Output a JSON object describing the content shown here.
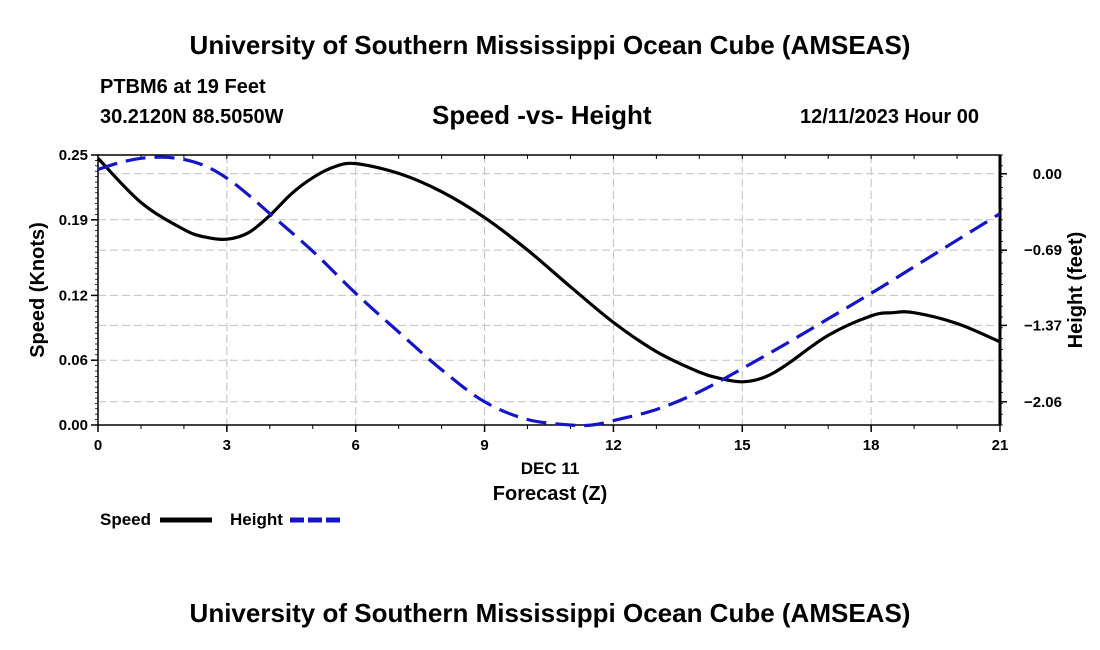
{
  "header": {
    "main_title": "University of Southern Mississippi Ocean Cube (AMSEAS)",
    "station": "PTBM6 at 19 Feet",
    "coords": "30.2120N  88.5050W",
    "chart_title": "Speed -vs- Height",
    "datetime": "12/11/2023 Hour 00"
  },
  "footer": {
    "title": "University of Southern Mississippi Ocean Cube (AMSEAS)"
  },
  "legend": {
    "speed": "Speed",
    "height": "Height"
  },
  "colors": {
    "speed": "#000000",
    "height": "#1414c8",
    "grid": "#c0c0c0"
  },
  "chart_data": {
    "type": "line",
    "title": "Speed -vs- Height",
    "xlabel": "Forecast (Z)",
    "xlabel_date": "DEC 11",
    "ylabel_left": "Speed (Knots)",
    "ylabel_right": "Height (feet)",
    "xlim": [
      0,
      21
    ],
    "ylim_left": [
      0,
      0.25
    ],
    "ylim_right": [
      -2.27,
      0.17
    ],
    "x_ticks": [
      0,
      3,
      6,
      9,
      12,
      15,
      18,
      21
    ],
    "y_ticks_left": [
      "0.00",
      "0.06",
      "0.12",
      "0.19",
      "0.25"
    ],
    "y_ticks_right": [
      "0.00",
      "-0.69",
      "-1.37",
      "-2.06"
    ],
    "grid": true,
    "series": [
      {
        "name": "Speed",
        "axis": "left",
        "style": "solid",
        "x": [
          0,
          1,
          2,
          2.5,
          3,
          3.5,
          4,
          4.5,
          5,
          5.5,
          6,
          7,
          8,
          9,
          10,
          11,
          12,
          13,
          14,
          14.5,
          15,
          15.5,
          16,
          17,
          18,
          18.5,
          19,
          20,
          21
        ],
        "values": [
          0.247,
          0.206,
          0.181,
          0.174,
          0.172,
          0.178,
          0.194,
          0.214,
          0.229,
          0.239,
          0.242,
          0.233,
          0.216,
          0.192,
          0.162,
          0.128,
          0.095,
          0.068,
          0.049,
          0.043,
          0.04,
          0.044,
          0.055,
          0.083,
          0.101,
          0.104,
          0.104,
          0.094,
          0.077
        ]
      },
      {
        "name": "Height",
        "axis": "right",
        "style": "dashed",
        "x": [
          0,
          0.5,
          1,
          1.5,
          2,
          2.5,
          3,
          3.5,
          4,
          5,
          6,
          7,
          8,
          9,
          10,
          11,
          11.5,
          12,
          13,
          14,
          15,
          16,
          17,
          18,
          19,
          20,
          21
        ],
        "values": [
          0.04,
          0.1,
          0.14,
          0.15,
          0.13,
          0.07,
          -0.04,
          -0.19,
          -0.36,
          -0.7,
          -1.08,
          -1.43,
          -1.77,
          -2.06,
          -2.22,
          -2.27,
          -2.27,
          -2.23,
          -2.13,
          -1.97,
          -1.76,
          -1.54,
          -1.31,
          -1.08,
          -0.84,
          -0.6,
          -0.36
        ]
      }
    ]
  }
}
